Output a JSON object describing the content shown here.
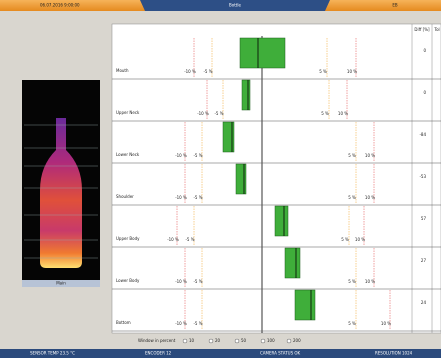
{
  "header": {
    "datetime": "06.07.2016 9:00:00",
    "tab": "Bottle",
    "user": "EB"
  },
  "image": {
    "label": "Main"
  },
  "columns": [
    "Diff [%]",
    "Tol"
  ],
  "rows": [
    {
      "name": "Mouth",
      "limits": [
        "-10 %",
        "-5 %",
        "5 %",
        "10 %"
      ],
      "diff": "0"
    },
    {
      "name": "Upper Neck",
      "limits": [
        "-10 %",
        "-5 %",
        "5 %",
        "10 %"
      ],
      "diff": "0"
    },
    {
      "name": "Lower Neck",
      "limits": [
        "-10 %",
        "-5 %",
        "5 %",
        "10 %"
      ],
      "diff": "-84"
    },
    {
      "name": "Shoulder",
      "limits": [
        "-10 %",
        "-5 %",
        "5 %",
        "10 %"
      ],
      "diff": "-53"
    },
    {
      "name": "Upper Body",
      "limits": [
        "-10 %",
        "-5 %",
        "5 %",
        "10 %"
      ],
      "diff": "57"
    },
    {
      "name": "Lower Body",
      "limits": [
        "-10 %",
        "-5 %",
        "5 %",
        "10 %"
      ],
      "diff": "27"
    },
    {
      "name": "Bottom",
      "limits": [
        "-10 %",
        "-5 %",
        "5 %",
        "10 %"
      ],
      "diff": "24"
    }
  ],
  "window": {
    "label": "Window in percent",
    "options": [
      "10",
      "20",
      "50",
      "100",
      "200"
    ]
  },
  "status": [
    "SENSOR TEMP 23.5 °C",
    "ENCODER 12",
    "CAMERA STATUS OK",
    "RESOLUTION 1024"
  ]
}
